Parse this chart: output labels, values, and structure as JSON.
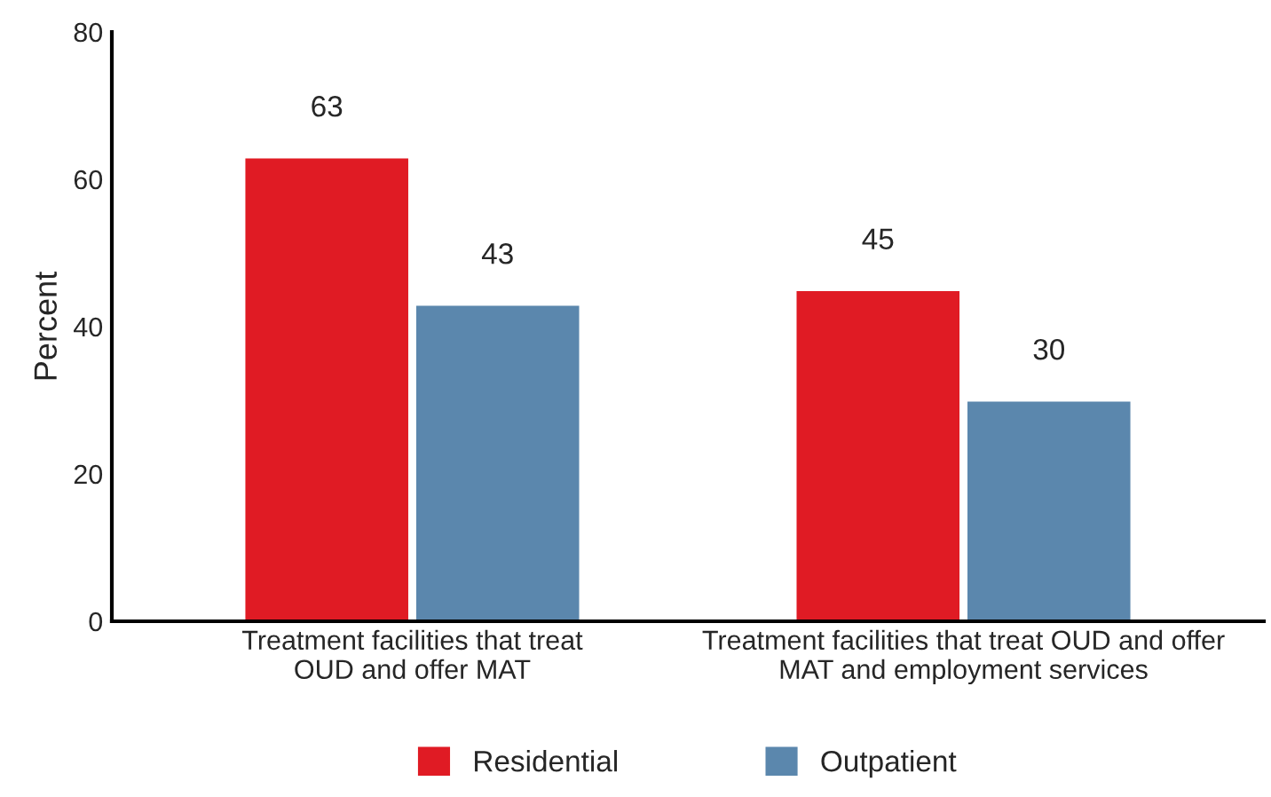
{
  "chart_data": {
    "type": "bar",
    "ylabel": "Percent",
    "categories": [
      "Treatment facilities that treat\nOUD and offer MAT",
      "Treatment facilities that treat OUD and offer\nMAT and employment services"
    ],
    "series": [
      {
        "name": "Residential",
        "color": "#e01b24",
        "values": [
          63,
          45
        ]
      },
      {
        "name": "Outpatient",
        "color": "#5b87ad",
        "values": [
          43,
          30
        ]
      }
    ],
    "ylim": [
      0,
      80
    ],
    "yticks": [
      0,
      20,
      40,
      60,
      80
    ],
    "data_labels": true,
    "grid": false,
    "legend": "bottom"
  }
}
